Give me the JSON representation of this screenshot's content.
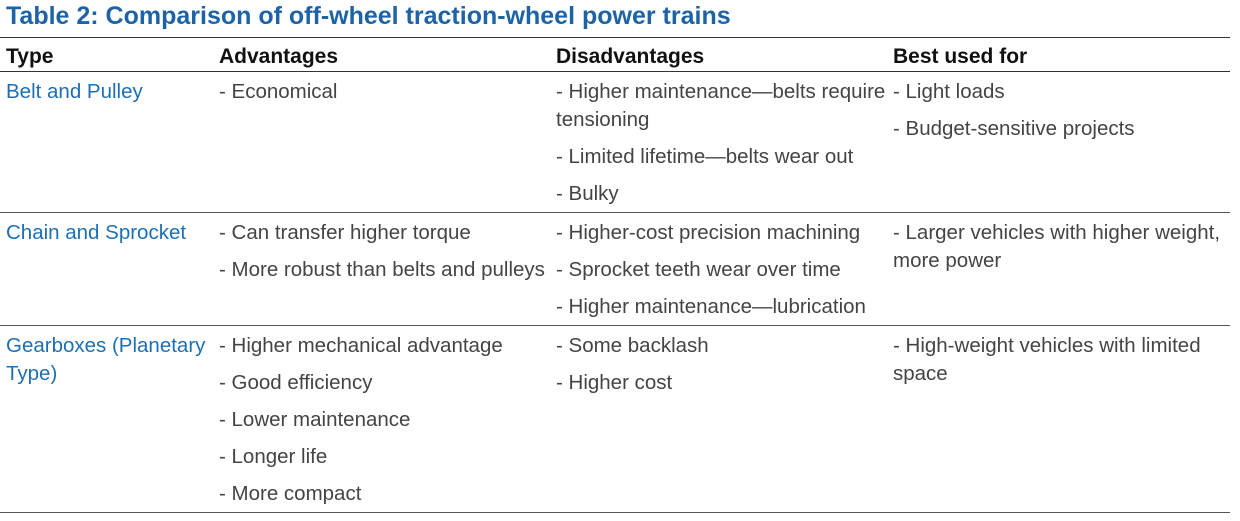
{
  "header": {
    "title": "Table 2: Comparison of off-wheel traction-wheel power trains"
  },
  "table": {
    "columns": [
      "Type",
      "Advantages",
      "Disadvantages",
      "Best used for"
    ],
    "rows": [
      [
        "Belt and Pulley",
        [
          "- Economical"
        ],
        [
          "- Higher maintenance—belts require tensioning",
          "- Limited lifetime—belts wear out",
          "- Bulky"
        ],
        [
          "- Light loads",
          "- Budget-sensitive projects"
        ]
      ],
      [
        "Chain and Sprocket",
        [
          "- Can transfer higher torque",
          "- More robust than belts and pulleys"
        ],
        [
          "- Higher-cost precision machining",
          "- Sprocket teeth wear over time",
          "- Higher maintenance—lubrication"
        ],
        [
          "- Larger vehicles with higher weight, more power"
        ]
      ],
      [
        "Gearboxes (Planetary Type)",
        [
          "- Higher mechanical advantage",
          "- Good efficiency",
          "- Lower maintenance",
          "- Longer life",
          "- More compact"
        ],
        [
          "- Some backlash",
          "- Higher cost"
        ],
        [
          "- High-weight vehicles with limited space"
        ]
      ]
    ]
  }
}
